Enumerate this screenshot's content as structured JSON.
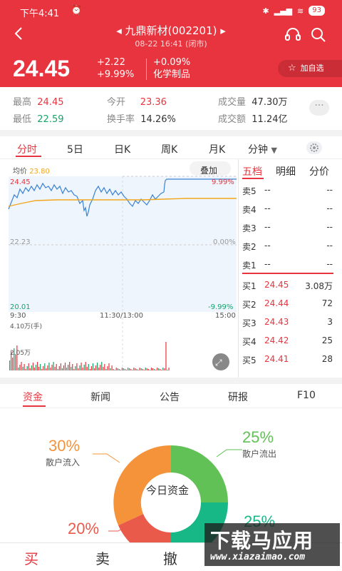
{
  "status": {
    "time": "下午4:41",
    "battery": "93",
    "network": "HD"
  },
  "header": {
    "title": "◂ 九鼎新材(002201) ▸",
    "subtitle": "08-22 16:41 (闭市)"
  },
  "price": {
    "last": "24.45",
    "change": "+2.22",
    "change_pct": "+9.99%",
    "chg_small": "+0.09%",
    "sector": "化学制品",
    "watch_label": "加自选"
  },
  "quote": {
    "high_label": "最高",
    "high": "24.45",
    "open_label": "今开",
    "open": "23.36",
    "volume_label": "成交量",
    "volume": "47.30万",
    "low_label": "最低",
    "low": "22.59",
    "turnover_label": "换手率",
    "turnover": "14.26%",
    "amount_label": "成交额",
    "amount": "11.24亿",
    "more": "···"
  },
  "chart_tabs": [
    "分时",
    "5日",
    "日K",
    "周K",
    "月K",
    "分钟"
  ],
  "intraday": {
    "avg_label": "均价",
    "avg_value": "23.80",
    "overlay_button": "叠加",
    "y_top": "24.45",
    "y_mid": "22.23",
    "y_bottom": "20.01",
    "pct_top": "9.99%",
    "pct_mid": "0.00%",
    "pct_bottom": "-9.99%",
    "t_start": "9:30",
    "t_mid": "11:30/13:00",
    "t_end": "15:00",
    "vol_top": "4.10万(手)",
    "vol_mid": "2.05万"
  },
  "orderbook": {
    "tabs": [
      "五档",
      "明细",
      "分价"
    ],
    "asks": [
      {
        "label": "卖5",
        "price": "--",
        "volume": "--"
      },
      {
        "label": "卖4",
        "price": "--",
        "volume": "--"
      },
      {
        "label": "卖3",
        "price": "--",
        "volume": "--"
      },
      {
        "label": "卖2",
        "price": "--",
        "volume": "--"
      },
      {
        "label": "卖1",
        "price": "--",
        "volume": "--"
      }
    ],
    "bids": [
      {
        "label": "买1",
        "price": "24.45",
        "volume": "3.08万"
      },
      {
        "label": "买2",
        "price": "24.44",
        "volume": "72"
      },
      {
        "label": "买3",
        "price": "24.43",
        "volume": "3"
      },
      {
        "label": "买4",
        "price": "24.42",
        "volume": "25"
      },
      {
        "label": "买5",
        "price": "24.41",
        "volume": "28"
      }
    ]
  },
  "info_tabs": [
    "资金",
    "新闻",
    "公告",
    "研报",
    "F10"
  ],
  "fund_flow": {
    "center_label": "今日资金",
    "items": [
      {
        "pct": "30%",
        "label": "散户流入",
        "color": "#f5933a"
      },
      {
        "pct": "25%",
        "label": "散户流出",
        "color": "#62c156"
      },
      {
        "pct": "20%",
        "label": "",
        "color": "#ea5a4b"
      },
      {
        "pct": "25%",
        "label": "",
        "color": "#17b886"
      }
    ]
  },
  "bottom_actions": [
    "买",
    "卖",
    "撤"
  ],
  "watermark": {
    "main": "下载马应用",
    "site": "www.xiazaimao.com"
  }
}
